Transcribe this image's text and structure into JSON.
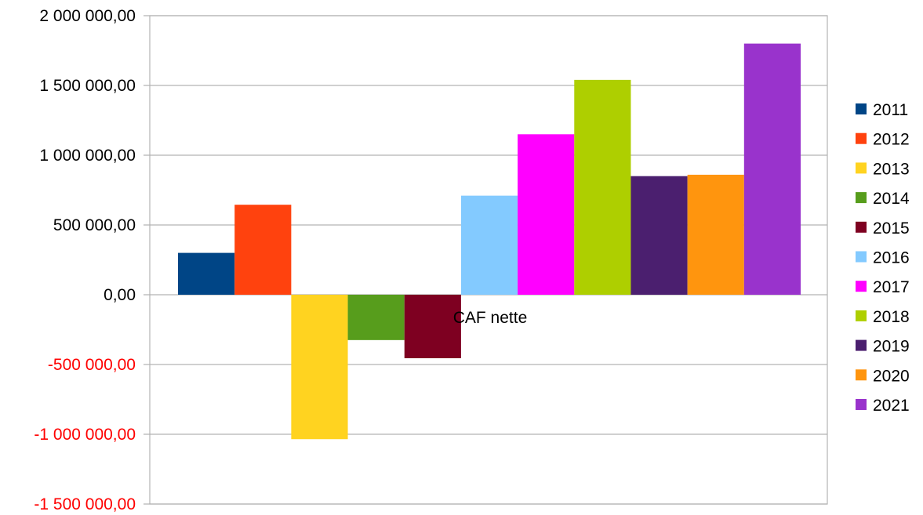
{
  "chart_data": {
    "type": "bar",
    "categories": [
      "CAF nette"
    ],
    "series": [
      {
        "name": "2011",
        "values": [
          300000
        ],
        "color": "#004586"
      },
      {
        "name": "2012",
        "values": [
          645000
        ],
        "color": "#ff420e"
      },
      {
        "name": "2013",
        "values": [
          -1035000
        ],
        "color": "#ffd320"
      },
      {
        "name": "2014",
        "values": [
          -325000
        ],
        "color": "#579d1c"
      },
      {
        "name": "2015",
        "values": [
          -455000
        ],
        "color": "#7e0021"
      },
      {
        "name": "2016",
        "values": [
          710000
        ],
        "color": "#83caff"
      },
      {
        "name": "2017",
        "values": [
          1150000
        ],
        "color": "#ff00ff"
      },
      {
        "name": "2018",
        "values": [
          1540000
        ],
        "color": "#aecf00"
      },
      {
        "name": "2019",
        "values": [
          850000
        ],
        "color": "#4b1f6f"
      },
      {
        "name": "2020",
        "values": [
          860000
        ],
        "color": "#ff950e"
      },
      {
        "name": "2021",
        "values": [
          1800000
        ],
        "color": "#9933cc"
      }
    ],
    "ylim": [
      -1500000,
      2000000
    ],
    "yticks": [
      2000000,
      1500000,
      1000000,
      500000,
      0,
      -500000,
      -1000000,
      -1500000
    ],
    "ytick_labels": [
      "2 000 000,00",
      "1 500 000,00",
      "1 000 000,00",
      "500 000,00",
      "0,00",
      "-500 000,00",
      "-1 000 000,00",
      "-1 500 000,00"
    ],
    "negative_label_color": "#ff0000",
    "grid": true,
    "legend": "right"
  }
}
